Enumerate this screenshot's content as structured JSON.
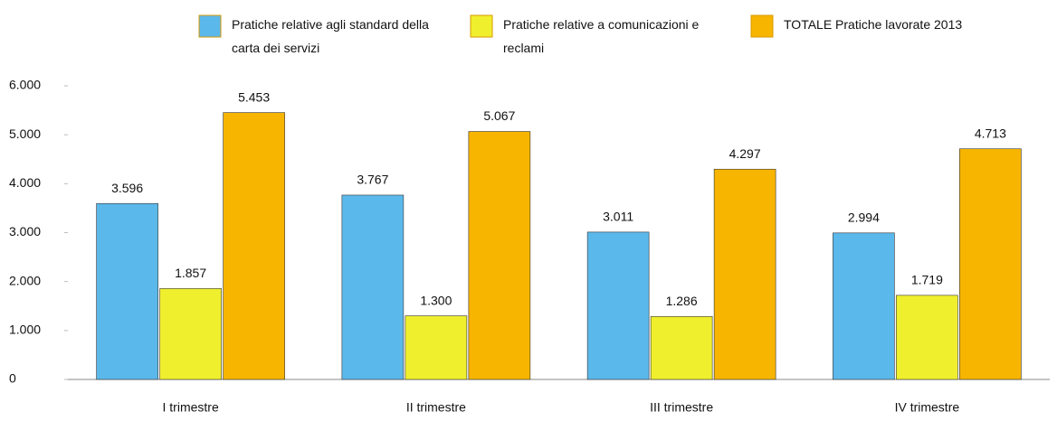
{
  "chart_data": {
    "type": "bar",
    "categories": [
      "I trimestre",
      "II trimestre",
      "III trimestre",
      "IV trimestre"
    ],
    "series": [
      {
        "name": "Pratiche relative agli standard della carta dei servizi",
        "color": "#5bb8ea",
        "values": [
          3596,
          3767,
          3011,
          2994
        ],
        "value_labels": [
          "3.596",
          "3.767",
          "3.011",
          "2.994"
        ]
      },
      {
        "name": "Pratiche relative a comunicazioni e reclami",
        "color": "#f0ef2e",
        "values": [
          1857,
          1300,
          1286,
          1719
        ],
        "value_labels": [
          "1.857",
          "1.300",
          "1.286",
          "1.719"
        ]
      },
      {
        "name": "TOTALE Pratiche lavorate 2013",
        "color": "#f7b500",
        "values": [
          5453,
          5067,
          4297,
          4713
        ],
        "value_labels": [
          "5.453",
          "5.067",
          "4.297",
          "4.713"
        ]
      }
    ],
    "ylim": [
      0,
      6000
    ],
    "yticks": [
      0,
      {
        "value": 1000,
        "label": "1.000"
      },
      {
        "value": 2000,
        "label": "2.000"
      },
      {
        "value": 3000,
        "label": "3.000"
      },
      {
        "value": 4000,
        "label": "4.000"
      },
      {
        "value": 5000,
        "label": "5.000"
      },
      {
        "value": 6000,
        "label": "6.000"
      }
    ],
    "grid": false
  }
}
